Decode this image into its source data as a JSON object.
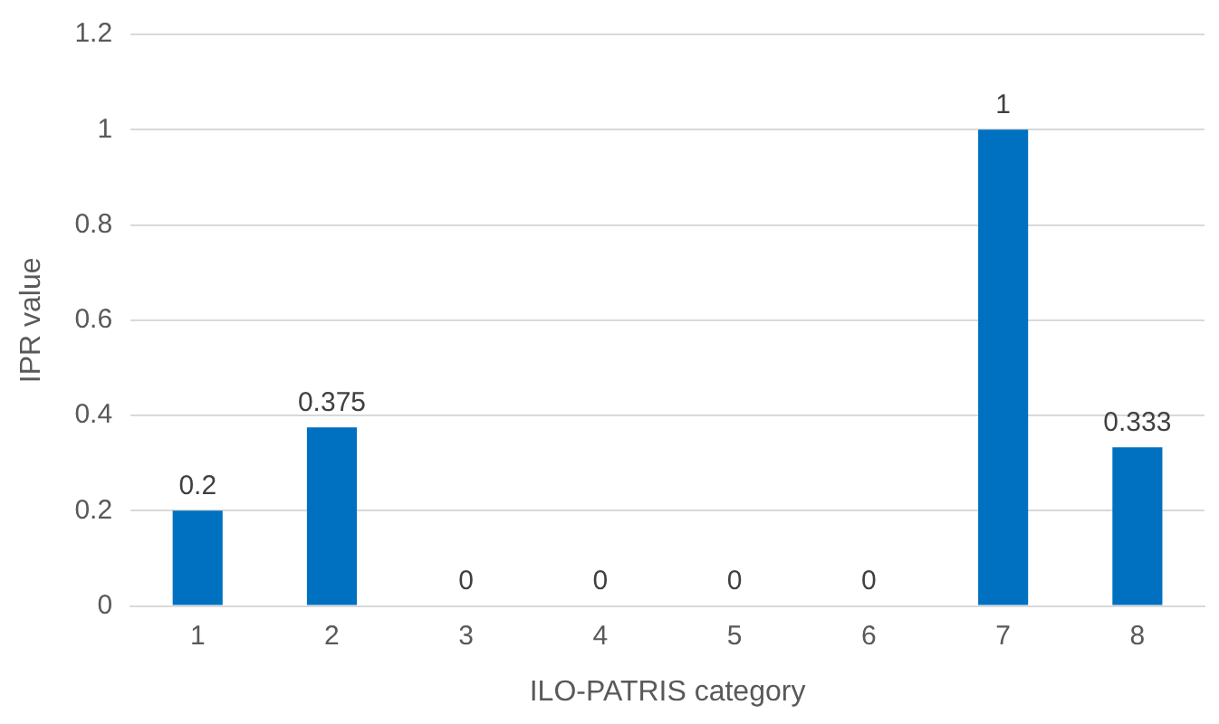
{
  "chart_data": {
    "type": "bar",
    "xlabel": "ILO-PATRIS category",
    "ylabel": "IPR value",
    "categories": [
      "1",
      "2",
      "3",
      "4",
      "5",
      "6",
      "7",
      "8"
    ],
    "values": [
      0.2,
      0.375,
      0,
      0,
      0,
      0,
      1,
      0.333
    ],
    "color": "#0070c0",
    "ylim": [
      0,
      1.2
    ],
    "yticks": [
      0,
      0.2,
      0.4,
      0.6,
      0.8,
      1,
      1.2
    ],
    "grid": "y",
    "data_labels": true,
    "legend": false
  }
}
